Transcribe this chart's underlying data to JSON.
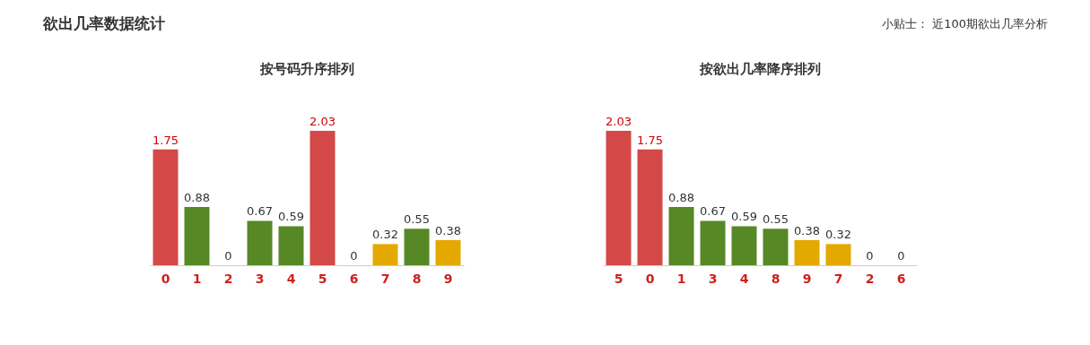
{
  "chart_data": [
    {
      "type": "other",
      "title": "欲出几率数据统计",
      "annotations": [
        "小贴士：  近100期欲出几率分析"
      ]
    },
    {
      "type": "bar",
      "title": "按号码升序排列",
      "categories": [
        "0",
        "1",
        "2",
        "3",
        "4",
        "5",
        "6",
        "7",
        "8",
        "9"
      ],
      "values": [
        1.75,
        0.88,
        0,
        0.67,
        0.59,
        2.03,
        0,
        0.32,
        0.55,
        0.38
      ],
      "colors": [
        "#d44848",
        "#578826",
        "#d44848",
        "#578826",
        "#578826",
        "#d44848",
        "#d44848",
        "#e3a900",
        "#578826",
        "#e3a900"
      ],
      "data_labels": true
    },
    {
      "type": "bar",
      "title": "按欲出几率降序排列",
      "categories": [
        "5",
        "0",
        "1",
        "3",
        "4",
        "8",
        "9",
        "7",
        "2",
        "6"
      ],
      "values": [
        2.03,
        1.75,
        0.88,
        0.67,
        0.59,
        0.55,
        0.38,
        0.32,
        0,
        0
      ],
      "colors": [
        "#d44848",
        "#d44848",
        "#578826",
        "#578826",
        "#578826",
        "#578826",
        "#e3a900",
        "#e3a900",
        "#d44848",
        "#d44848"
      ],
      "data_labels": true
    }
  ]
}
